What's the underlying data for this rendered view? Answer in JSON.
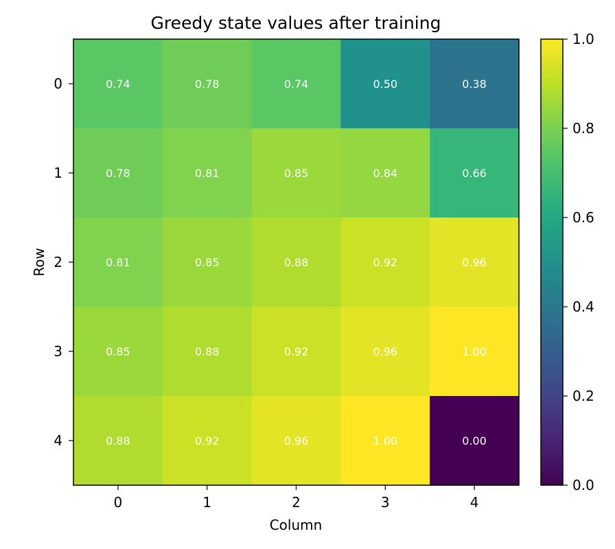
{
  "chart_data": {
    "type": "heatmap",
    "title": "Greedy state values after training",
    "xlabel": "Column",
    "ylabel": "Row",
    "x_ticks": [
      "0",
      "1",
      "2",
      "3",
      "4"
    ],
    "y_ticks": [
      "0",
      "1",
      "2",
      "3",
      "4"
    ],
    "values": [
      [
        0.74,
        0.78,
        0.74,
        0.5,
        0.38
      ],
      [
        0.78,
        0.81,
        0.85,
        0.84,
        0.66
      ],
      [
        0.81,
        0.85,
        0.88,
        0.92,
        0.96
      ],
      [
        0.85,
        0.88,
        0.92,
        0.96,
        1.0
      ],
      [
        0.88,
        0.92,
        0.96,
        1.0,
        0.0
      ]
    ],
    "cell_labels": [
      [
        "0.74",
        "0.78",
        "0.74",
        "0.50",
        "0.38"
      ],
      [
        "0.78",
        "0.81",
        "0.85",
        "0.84",
        "0.66"
      ],
      [
        "0.81",
        "0.85",
        "0.88",
        "0.92",
        "0.96"
      ],
      [
        "0.85",
        "0.88",
        "0.92",
        "0.96",
        "1.00"
      ],
      [
        "0.88",
        "0.92",
        "0.96",
        "1.00",
        "0.00"
      ]
    ],
    "colormap": "viridis",
    "vmin": 0.0,
    "vmax": 1.0,
    "colorbar_ticks": [
      "0.0",
      "0.2",
      "0.4",
      "0.6",
      "0.8",
      "1.0"
    ],
    "cell_label_color": "#ffffff",
    "grid": false
  }
}
